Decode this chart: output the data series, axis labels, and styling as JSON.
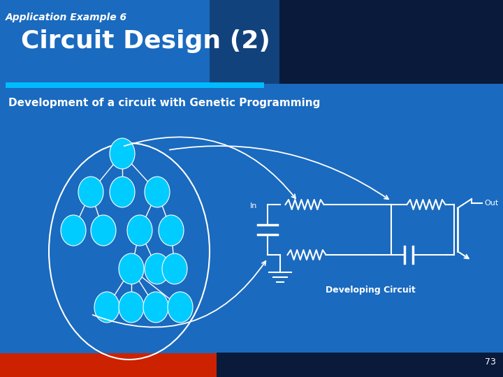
{
  "bg_color": "#1a6abf",
  "header_grad_color": "#0a1a3a",
  "title_small": "Application Example 6",
  "title_large": "Circuit Design (2)",
  "subtitle": "Development of a circuit with Genetic Programming",
  "accent_bar_color": "#00bbff",
  "node_color": "#00ccff",
  "node_edge_color": "#ffffff",
  "line_color": "#ffffff",
  "circuit_color": "#ffffff",
  "page_num": "73",
  "footer_left_color": "#cc2200",
  "footer_right_color": "#0a1a3a",
  "in_label": "In",
  "out_label": "Out",
  "dev_circuit_label": "Developing Circuit"
}
